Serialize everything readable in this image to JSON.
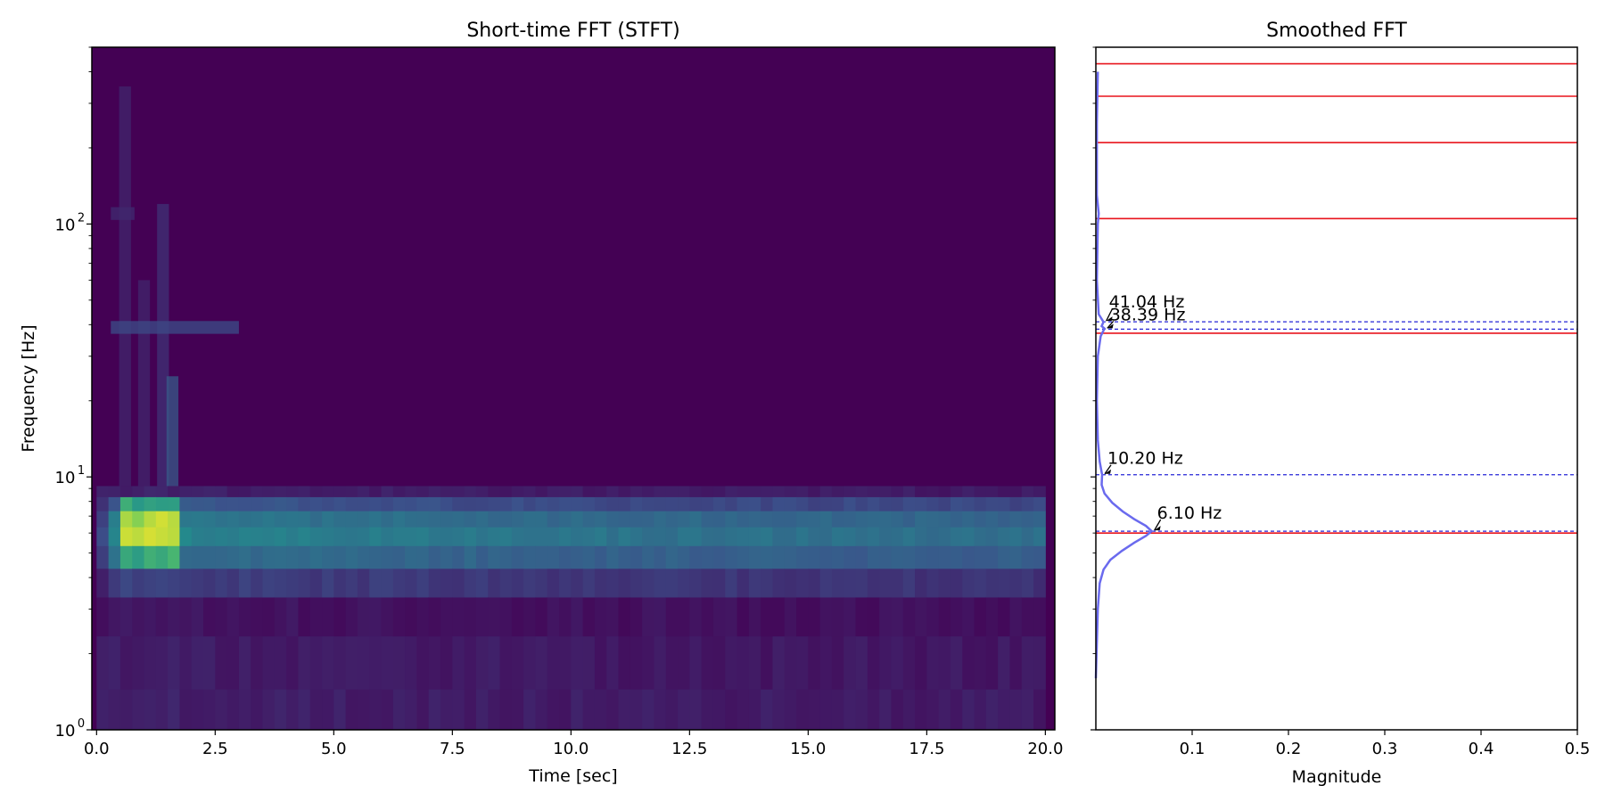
{
  "chart_data": [
    {
      "type": "heatmap",
      "title": "Short-time FFT (STFT)",
      "xlabel": "Time [sec]",
      "ylabel": "Frequency [Hz]",
      "xlim": [
        -0.1,
        20.2
      ],
      "ylim": [
        1,
        500
      ],
      "yscale": "log",
      "xticks": [
        "0.0",
        "2.5",
        "5.0",
        "7.5",
        "10.0",
        "12.5",
        "15.0",
        "17.5",
        "20.0"
      ],
      "xtick_values": [
        0,
        2.5,
        5,
        7.5,
        10,
        12.5,
        15,
        17.5,
        20
      ],
      "yticks": [
        {
          "value": 1,
          "base": "10",
          "exp": "0"
        },
        {
          "value": 10,
          "base": "10",
          "exp": "1"
        },
        {
          "value": 100,
          "base": "10",
          "exp": "2"
        }
      ],
      "colormap": "viridis",
      "time_bins": {
        "start": 0,
        "end": 20.0,
        "count": 80
      },
      "bands": [
        {
          "f_low": 1.0,
          "f_high": 1.45,
          "base": 0.1
        },
        {
          "f_low": 1.45,
          "f_high": 2.35,
          "base": 0.09
        },
        {
          "f_low": 2.35,
          "f_high": 3.35,
          "base": 0.06
        },
        {
          "f_low": 3.35,
          "f_high": 4.35,
          "base": 0.2
        },
        {
          "f_low": 4.35,
          "f_high": 5.35,
          "base": 0.38
        },
        {
          "f_low": 5.35,
          "f_high": 6.35,
          "base": 0.47
        },
        {
          "f_low": 6.35,
          "f_high": 7.35,
          "base": 0.42
        },
        {
          "f_low": 7.35,
          "f_high": 8.35,
          "base": 0.28
        },
        {
          "f_low": 8.35,
          "f_high": 9.2,
          "base": 0.1
        },
        {
          "f_low": 9.2,
          "f_high": 500,
          "base": 0.0
        }
      ],
      "peak_region": {
        "t_start": 0.4,
        "t_end": 1.7,
        "f_low": 4.35,
        "f_high": 8.35,
        "value": 0.95
      },
      "secondary_features": [
        {
          "f": 39,
          "t_start": 0.3,
          "t_end": 3.0,
          "value": 0.22
        },
        {
          "f": 110,
          "t_start": 0.3,
          "t_end": 0.8,
          "value": 0.12
        }
      ],
      "vertical_transients": [
        {
          "t": 0.6,
          "f_max": 350,
          "value": 0.12
        },
        {
          "t": 1.0,
          "f_max": 60,
          "value": 0.12
        },
        {
          "t": 1.4,
          "f_max": 120,
          "value": 0.16
        },
        {
          "t": 1.6,
          "f_max": 25,
          "value": 0.3
        }
      ]
    },
    {
      "type": "line",
      "title": "Smoothed FFT",
      "xlabel": "Magnitude",
      "xlim": [
        0,
        0.5
      ],
      "ylim": [
        1,
        500
      ],
      "yscale": "log",
      "xticks": [
        "0.1",
        "0.2",
        "0.3",
        "0.4",
        "0.5"
      ],
      "xtick_values": [
        0.1,
        0.2,
        0.3,
        0.4,
        0.5
      ],
      "series": [
        {
          "color": "#6a6aee",
          "points": [
            {
              "f": 1.6,
              "m": 0.0
            },
            {
              "f": 2.2,
              "m": 0.001
            },
            {
              "f": 3.0,
              "m": 0.002
            },
            {
              "f": 3.8,
              "m": 0.004
            },
            {
              "f": 4.3,
              "m": 0.008
            },
            {
              "f": 4.7,
              "m": 0.015
            },
            {
              "f": 5.1,
              "m": 0.027
            },
            {
              "f": 5.5,
              "m": 0.04
            },
            {
              "f": 5.85,
              "m": 0.052
            },
            {
              "f": 6.1,
              "m": 0.058
            },
            {
              "f": 6.4,
              "m": 0.052
            },
            {
              "f": 6.8,
              "m": 0.04
            },
            {
              "f": 7.3,
              "m": 0.028
            },
            {
              "f": 7.9,
              "m": 0.017
            },
            {
              "f": 8.6,
              "m": 0.009
            },
            {
              "f": 9.3,
              "m": 0.006
            },
            {
              "f": 10.2,
              "m": 0.0065
            },
            {
              "f": 11.5,
              "m": 0.004
            },
            {
              "f": 14,
              "m": 0.002
            },
            {
              "f": 20,
              "m": 0.001
            },
            {
              "f": 30,
              "m": 0.002
            },
            {
              "f": 36,
              "m": 0.005
            },
            {
              "f": 38.6,
              "m": 0.009
            },
            {
              "f": 39.5,
              "m": 0.006
            },
            {
              "f": 41.0,
              "m": 0.008
            },
            {
              "f": 44,
              "m": 0.003
            },
            {
              "f": 60,
              "m": 0.001
            },
            {
              "f": 100,
              "m": 0.002
            },
            {
              "f": 110,
              "m": 0.003
            },
            {
              "f": 130,
              "m": 0.001
            },
            {
              "f": 250,
              "m": 0.001
            },
            {
              "f": 400,
              "m": 0.002
            }
          ]
        }
      ],
      "hlines_red": [
        6.0,
        37,
        105,
        210,
        320,
        430
      ],
      "hlines_blue_dashed": [
        6.1,
        10.2,
        38.39,
        41.04
      ],
      "annotations": [
        {
          "text": "6.10 Hz",
          "f": 6.1,
          "m": 0.058
        },
        {
          "text": "10.20 Hz",
          "f": 10.2,
          "m": 0.0065
        },
        {
          "text": "38.39 Hz",
          "f": 38.39,
          "m": 0.009
        },
        {
          "text": "41.04 Hz",
          "f": 41.04,
          "m": 0.008
        }
      ]
    }
  ]
}
